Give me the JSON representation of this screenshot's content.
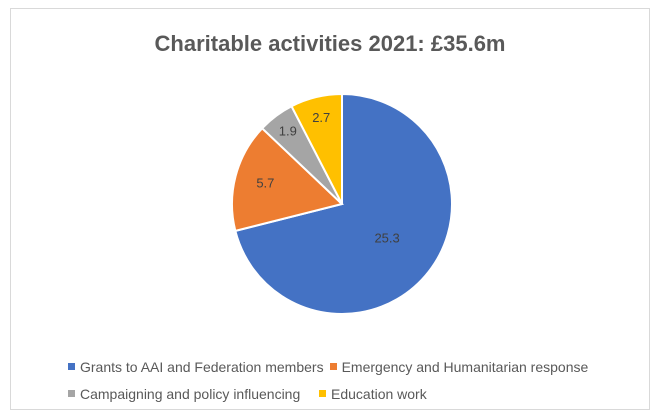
{
  "chart_data": {
    "type": "pie",
    "title": "Charitable activities 2021: £35.6m",
    "categories": [
      "Grants to AAI and Federation members",
      "Emergency and Humanitarian response",
      "Campaigning and policy influencing",
      "Education work"
    ],
    "values": [
      25.3,
      5.7,
      1.9,
      2.7
    ],
    "data_labels": [
      "25.3",
      "5.7",
      "1.9",
      "2.7"
    ],
    "colors": [
      "#4472c4",
      "#ed7d31",
      "#a5a5a5",
      "#ffc000"
    ],
    "legend_position": "bottom",
    "start_angle": "top, clockwise"
  }
}
